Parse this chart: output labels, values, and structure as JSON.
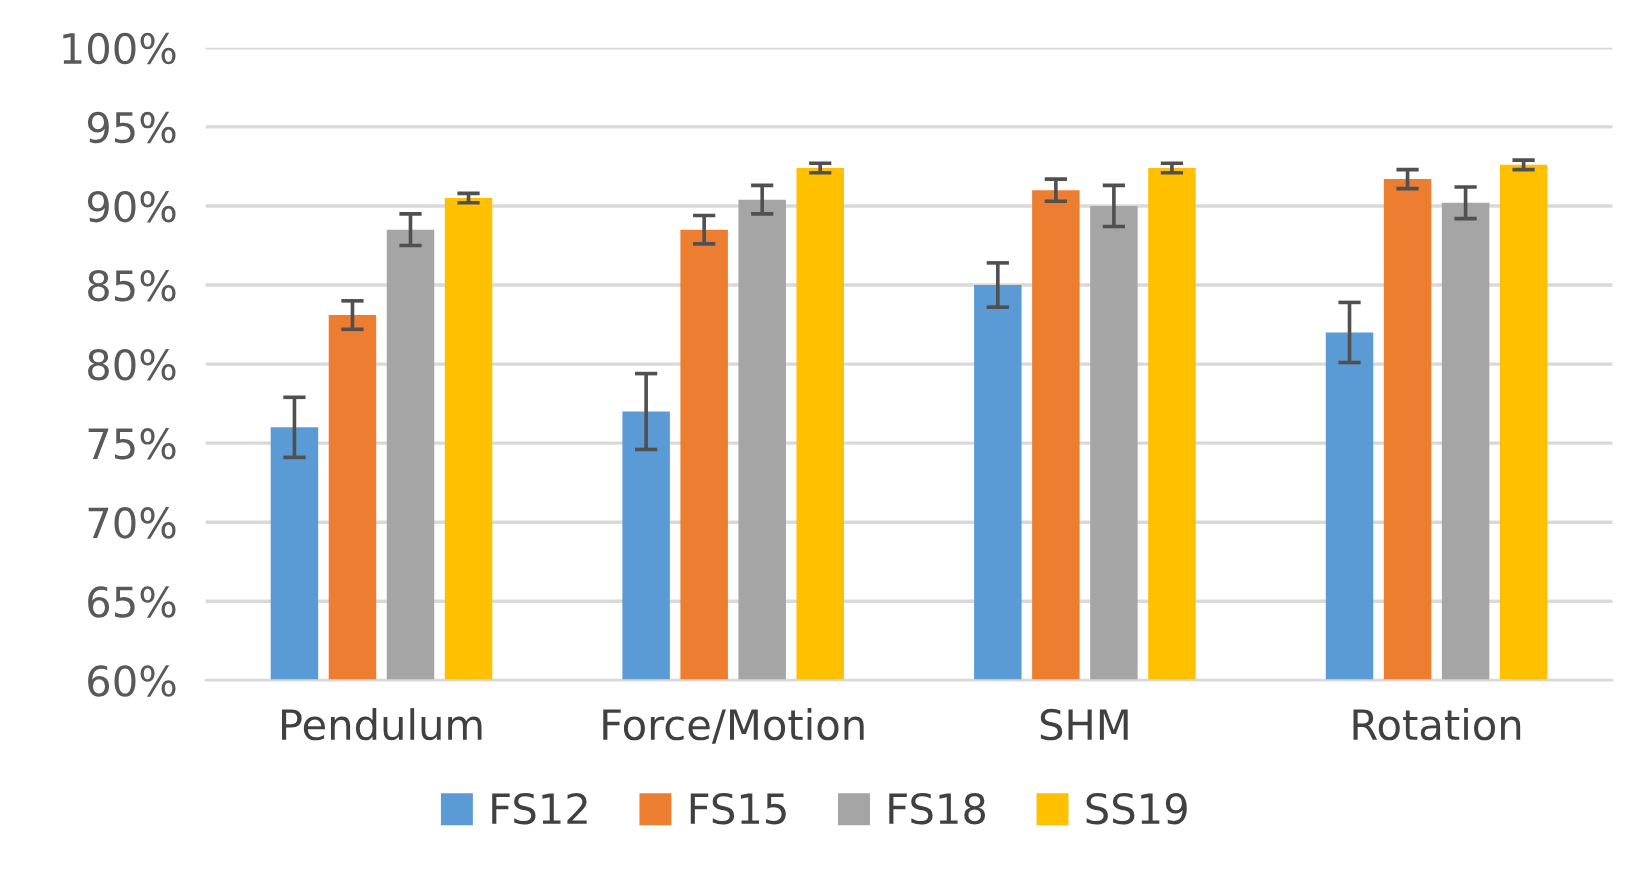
{
  "chart_data": {
    "type": "bar",
    "categories": [
      "Pendulum",
      "Force/Motion",
      "SHM",
      "Rotation"
    ],
    "series": [
      {
        "name": "FS12",
        "color": "#5b9bd5",
        "values": [
          76.0,
          77.0,
          85.0,
          82.0
        ],
        "errors": [
          1.9,
          2.4,
          1.4,
          1.9
        ]
      },
      {
        "name": "FS15",
        "color": "#ed7d31",
        "values": [
          83.1,
          88.5,
          91.0,
          91.7
        ],
        "errors": [
          0.9,
          0.9,
          0.7,
          0.6
        ]
      },
      {
        "name": "FS18",
        "color": "#a5a5a5",
        "values": [
          88.5,
          90.4,
          90.0,
          90.2
        ],
        "errors": [
          1.0,
          0.9,
          1.3,
          1.0
        ]
      },
      {
        "name": "SS19",
        "color": "#ffc000",
        "values": [
          90.5,
          92.4,
          92.4,
          92.6
        ],
        "errors": [
          0.3,
          0.3,
          0.3,
          0.3
        ]
      }
    ],
    "ylim": [
      60,
      100
    ],
    "yticks": [
      {
        "value": 60,
        "label": "60%"
      },
      {
        "value": 65,
        "label": "65%"
      },
      {
        "value": 70,
        "label": "70%"
      },
      {
        "value": 75,
        "label": "75%"
      },
      {
        "value": 80,
        "label": "80%"
      },
      {
        "value": 85,
        "label": "85%"
      },
      {
        "value": 90,
        "label": "90%"
      },
      {
        "value": 95,
        "label": "95%"
      },
      {
        "value": 100,
        "label": "100%"
      }
    ],
    "grid": "y",
    "legend": "bottom"
  }
}
